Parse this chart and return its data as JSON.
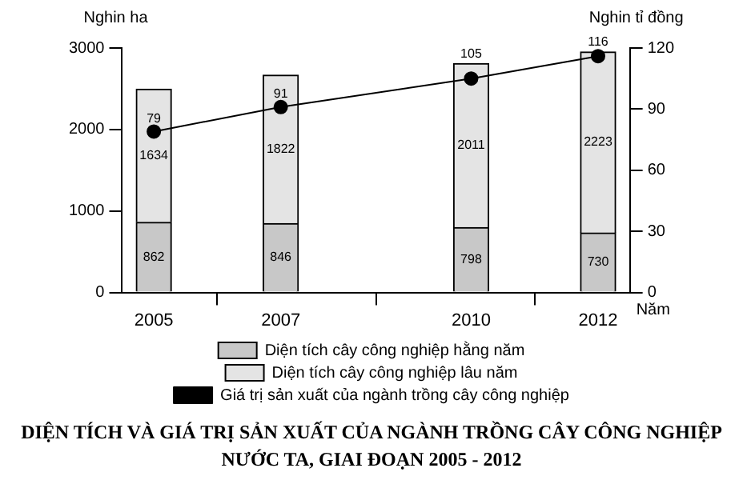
{
  "chart_data": {
    "type": "bar",
    "stacked": true,
    "title": "DIỆN TÍCH VÀ GIÁ TRỊ SẢN XUẤT CỦA NGÀNH TRỒNG CÂY CÔNG NGHIỆP NƯỚC TA, GIAI ĐOẠN 2005 - 2012",
    "xlabel": "Năm",
    "ylabel": "Nghin ha",
    "y2label": "Nghin tỉ đồng",
    "x": [
      2005,
      2007,
      2010,
      2012
    ],
    "xlim": [
      2004.5,
      2012.5
    ],
    "xticks": [
      2005,
      2007,
      2010,
      2012
    ],
    "ylim": [
      0,
      3000
    ],
    "yticks": [
      0,
      1000,
      2000,
      3000
    ],
    "y2lim": [
      0,
      120
    ],
    "y2ticks": [
      0,
      30,
      60,
      90,
      120
    ],
    "series": [
      {
        "name": "Diện tích cây công nghiệp hằng năm",
        "color": "#c8c8c8",
        "values": [
          862,
          846,
          798,
          730
        ]
      },
      {
        "name": "Diện tích cây công nghiệp lâu năm",
        "color": "#e4e4e4",
        "values": [
          1634,
          1822,
          2011,
          2223
        ]
      },
      {
        "name": "Giá trị sản xuất của ngành trồng cây công nghiệp",
        "type": "line",
        "axis": "y2",
        "color": "#000000",
        "values": [
          79,
          91,
          105,
          116
        ]
      }
    ],
    "data_labels": true,
    "grid": false,
    "legend": "bottom",
    "marker": "circle",
    "line_style": "solid"
  }
}
